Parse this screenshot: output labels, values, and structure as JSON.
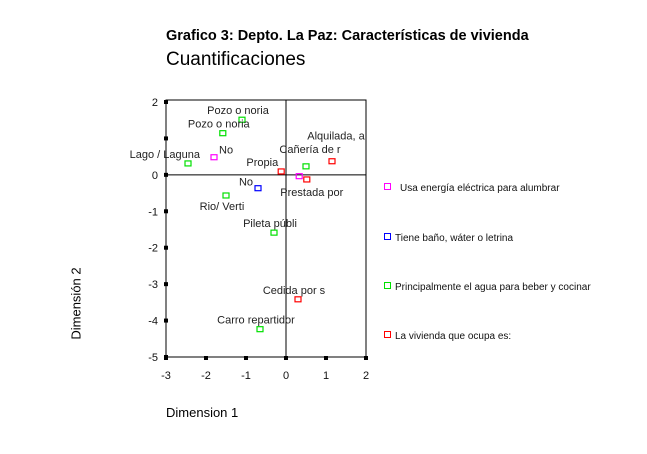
{
  "chart_data": {
    "type": "scatter",
    "title": "Grafico 3: Depto. La Paz: Características de vivienda",
    "subtitle": "Cuantificaciones",
    "xlabel": "Dimension 1",
    "ylabel": "Dimensión 2",
    "xlim": [
      -3,
      2
    ],
    "ylim": [
      -5,
      2
    ],
    "xticks": [
      "-3",
      "-2",
      "-1",
      "0",
      "1",
      "2"
    ],
    "yticks": [
      {
        "v": 2,
        "label": "2"
      },
      {
        "v": 1,
        "label": ""
      },
      {
        "v": 0,
        "label": "0"
      },
      {
        "v": -1,
        "label": "-1"
      },
      {
        "v": -2,
        "label": "-2"
      },
      {
        "v": -3,
        "label": "-3"
      },
      {
        "v": -4,
        "label": "-4"
      },
      {
        "v": -5,
        "label": "-5"
      }
    ],
    "legend_position": "right",
    "series": [
      {
        "name": "Usa energía eléctrica para alumbrar",
        "color": "#ff00ff",
        "points": [
          {
            "x": -1.8,
            "y": 0.47,
            "label": "No"
          },
          {
            "x": 0.33,
            "y": -0.05,
            "label": ""
          }
        ]
      },
      {
        "name": "Tiene baño, wáter o letrina",
        "color": "#0000ff",
        "points": [
          {
            "x": -0.7,
            "y": -0.38,
            "label": "No"
          }
        ]
      },
      {
        "name": "Principalmente el agua para beber y cocinar",
        "color": "#00e000",
        "points": [
          {
            "x": -1.1,
            "y": 1.5,
            "label": "Pozo  o noria"
          },
          {
            "x": -1.58,
            "y": 1.13,
            "label": "Pozo  o noria"
          },
          {
            "x": -2.45,
            "y": 0.3,
            "label": "Lago  / Laguna"
          },
          {
            "x": -1.5,
            "y": -0.58,
            "label": "Rio/  Verti"
          },
          {
            "x": 0.5,
            "y": 0.22,
            "label": "Cañería de r"
          },
          {
            "x": -0.3,
            "y": -1.6,
            "label": "Pileta  públi"
          },
          {
            "x": -0.65,
            "y": -4.25,
            "label": "Carro  repartidor"
          }
        ]
      },
      {
        "name": "La vivienda que ocupa es:",
        "color": "#ff0000",
        "points": [
          {
            "x": -0.12,
            "y": 0.08,
            "label": "Propia"
          },
          {
            "x": 0.52,
            "y": -0.14,
            "label": "Prestada por"
          },
          {
            "x": 1.15,
            "y": 0.36,
            "label": "Alquilada, a"
          },
          {
            "x": 0.3,
            "y": -3.43,
            "label": "Cedida  por s"
          }
        ]
      }
    ]
  }
}
